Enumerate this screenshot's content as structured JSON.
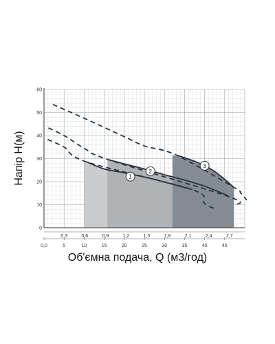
{
  "chart_data": {
    "type": "line",
    "xlabel": "Об'ємна подача, Q (м3/год)",
    "ylabel": "Напір Н(м)",
    "y_ticks": [
      "0",
      "10",
      "20",
      "30",
      "40",
      "50",
      "60"
    ],
    "ylim": [
      0,
      60
    ],
    "x_ticks_top": [
      "0,3",
      "0,6",
      "0,9",
      "1,2",
      "1,5",
      "1,8",
      "2,1",
      "2,4",
      "2,7"
    ],
    "x_ticks_bottom": [
      "0,0",
      "5",
      "10",
      "15",
      "20",
      "25",
      "30",
      "35",
      "40",
      "45"
    ],
    "x_bottom_range": [
      0,
      50
    ],
    "grid": true,
    "series": [
      {
        "name": "1",
        "color": "#2b3440",
        "solid": [
          [
            10.7,
            28.5
          ],
          [
            15,
            25.5
          ],
          [
            20,
            23.8
          ],
          [
            25,
            22
          ],
          [
            30,
            19.8
          ],
          [
            35,
            17.5
          ],
          [
            37,
            16.5
          ]
        ],
        "dashed": [
          [
            0.9,
            38.3
          ],
          [
            5,
            35
          ],
          [
            10.7,
            28.5
          ],
          [
            37,
            16.5
          ],
          [
            40,
            10.5
          ],
          [
            43,
            8
          ]
        ],
        "marker_at": [
          21.5,
          22.2
        ],
        "band": [
          10,
          34.8
        ],
        "band_color": "#c9cbcc",
        "band_top": [
          [
            10,
            28.5
          ],
          [
            15,
            25.5
          ],
          [
            20,
            23.8
          ],
          [
            25,
            22
          ],
          [
            30,
            19.8
          ],
          [
            34.8,
            17.5
          ]
        ]
      },
      {
        "name": "2",
        "color": "#2b3440",
        "solid": [
          [
            16.1,
            29.5
          ],
          [
            20,
            27.7
          ],
          [
            25,
            25.5
          ],
          [
            30,
            23
          ],
          [
            35,
            20.7
          ],
          [
            40,
            18
          ],
          [
            45,
            14.5
          ],
          [
            46,
            13.5
          ]
        ],
        "dashed": [
          [
            1.1,
            43.3
          ],
          [
            5,
            40
          ],
          [
            10,
            34.5
          ],
          [
            16.1,
            29.5
          ],
          [
            46,
            13.5
          ],
          [
            48,
            10
          ]
        ],
        "marker_at": [
          26.5,
          24.5
        ],
        "band": [
          15.8,
          43.4
        ],
        "band_color": "#b0b3b5",
        "band_top": [
          [
            15.8,
            29.5
          ],
          [
            20,
            27.7
          ],
          [
            25,
            25.5
          ],
          [
            30,
            23
          ],
          [
            35,
            20.7
          ],
          [
            40,
            18
          ],
          [
            43.4,
            15.5
          ]
        ]
      },
      {
        "name": "3",
        "color": "#2b3440",
        "solid": [
          [
            33,
            31.5
          ],
          [
            38,
            28.5
          ],
          [
            42,
            25
          ],
          [
            45,
            21
          ],
          [
            47.3,
            17.5
          ]
        ],
        "dashed": [
          [
            2.2,
            53.5
          ],
          [
            10,
            47.5
          ],
          [
            20,
            39.5
          ],
          [
            25,
            35.5
          ],
          [
            33,
            31.5
          ],
          [
            47.3,
            17.5
          ],
          [
            49,
            15
          ],
          [
            50.5,
            12
          ]
        ],
        "marker_at": [
          40,
          26.9
        ],
        "band": [
          32,
          47.3
        ],
        "band_color": "#848b92",
        "band_top": [
          [
            32,
            31.5
          ],
          [
            38,
            28.5
          ],
          [
            42,
            25
          ],
          [
            45,
            21
          ],
          [
            47.3,
            17.5
          ]
        ]
      }
    ]
  }
}
